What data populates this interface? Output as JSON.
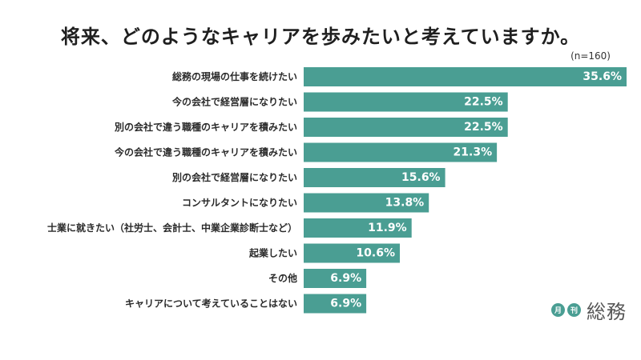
{
  "chart_data": {
    "type": "bar",
    "orientation": "horizontal",
    "title": "将来、どのようなキャリアを歩みたいと考えていますか。",
    "note": "(n=160)",
    "categories": [
      "総務の現場の仕事を続けたい",
      "今の会社で経営層になりたい",
      "別の会社で違う職種のキャリアを積みたい",
      "今の会社で違う職種のキャリアを積みたい",
      "別の会社で経営層になりたい",
      "コンサルタントになりたい",
      "士業に就きたい（社労士、会計士、中業企業診断士など）",
      "起業したい",
      "その他",
      "キャリアについて考えていることはない"
    ],
    "values": [
      35.6,
      22.5,
      22.5,
      21.3,
      15.6,
      13.8,
      11.9,
      10.6,
      6.9,
      6.9
    ],
    "value_labels": [
      "35.6%",
      "22.5%",
      "22.5%",
      "21.3%",
      "15.6%",
      "13.8%",
      "11.9%",
      "10.6%",
      "6.9%",
      "6.9%"
    ],
    "xlim": [
      0,
      35.6
    ],
    "bar_color": "#4a9e93",
    "grid": false,
    "legend": "none"
  },
  "logo": {
    "badge1": "月",
    "badge2": "刊",
    "text": "総務"
  }
}
